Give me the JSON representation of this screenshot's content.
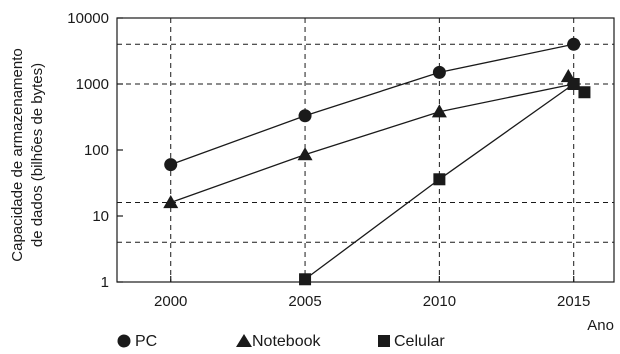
{
  "chart_data": {
    "type": "line",
    "title": "",
    "xlabel": "Ano",
    "ylabel": "Capacidade de armazenamento de dados (bilhões de bytes)",
    "ylabel_lines": [
      "Capacidade de armazenamento",
      "de dados (bilhões de bytes)"
    ],
    "yscale": "log",
    "ylim": [
      1,
      10000
    ],
    "xlim": [
      1998,
      2016.5
    ],
    "x_ticks": [
      2000,
      2005,
      2010,
      2015
    ],
    "x_tick_labels": [
      "2000",
      "2005",
      "2010",
      "2015"
    ],
    "y_ticks": [
      1,
      10,
      100,
      1000,
      10000
    ],
    "y_tick_labels": [
      "1",
      "10",
      "100",
      "1000",
      "10000"
    ],
    "reference_lines_y": [
      4000,
      1000,
      16,
      4
    ],
    "grid": "dashed at x ticks and reference levels",
    "legend_position": "bottom-left",
    "series": [
      {
        "name": "PC",
        "marker": "circle",
        "x": [
          2000,
          2005,
          2010,
          2015
        ],
        "y": [
          60,
          330,
          1500,
          4000
        ]
      },
      {
        "name": "Notebook",
        "marker": "triangle",
        "x": [
          2000,
          2005,
          2010,
          2015
        ],
        "y": [
          16,
          85,
          380,
          1000
        ]
      },
      {
        "name": "Celular",
        "marker": "square",
        "x": [
          2005,
          2010,
          2015
        ],
        "y": [
          1.1,
          36,
          1000
        ]
      }
    ],
    "unconnected_markers": [
      {
        "series": "Notebook",
        "marker": "triangle",
        "x": 2014.8,
        "y": 1300
      },
      {
        "series": "Celular",
        "marker": "square",
        "x": 2015.4,
        "y": 750
      }
    ]
  },
  "legend": {
    "items": [
      {
        "label": "PC",
        "marker": "circle"
      },
      {
        "label": "Notebook",
        "marker": "triangle"
      },
      {
        "label": "Celular",
        "marker": "square"
      }
    ]
  }
}
